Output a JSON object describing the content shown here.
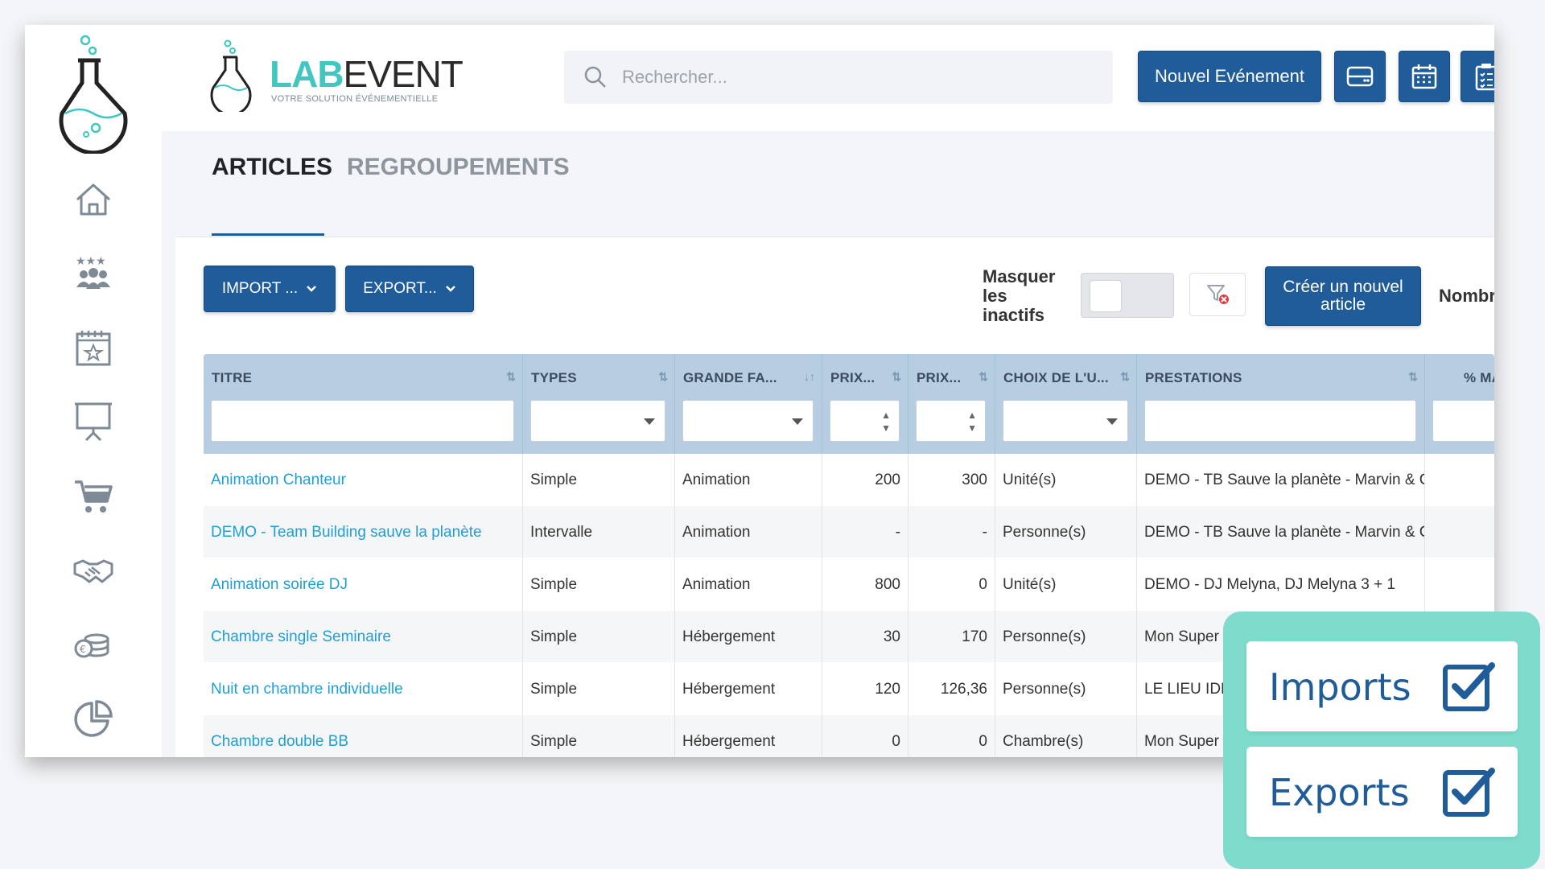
{
  "app": {
    "brand_lab": "LAB",
    "brand_event": "EVENT",
    "brand_tagline": "VOTRE SOLUTION ÉVÉNEMENTIELLE",
    "accent_color": "#3fc7c0",
    "primary_color": "#1f5c99"
  },
  "sidebar": {
    "items": [
      {
        "icon": "home-icon"
      },
      {
        "icon": "team-stars-icon"
      },
      {
        "icon": "event-calendar-icon"
      },
      {
        "icon": "presentation-board-icon"
      },
      {
        "icon": "cart-icon"
      },
      {
        "icon": "handshake-icon"
      },
      {
        "icon": "coins-icon"
      },
      {
        "icon": "pie-chart-icon"
      }
    ]
  },
  "header": {
    "search_placeholder": "Rechercher...",
    "new_event_label": "Nouvel Evénement",
    "icon_buttons": [
      "card-icon",
      "calendar-icon",
      "clipboard-icon"
    ]
  },
  "tabs": [
    {
      "label": "ARTICLES",
      "active": true
    },
    {
      "label": "REGROUPEMENTS",
      "active": false
    }
  ],
  "toolbar": {
    "import_label": "IMPORT ...",
    "export_label": "EXPORT...",
    "mask_inactive_label": "Masquer les inactifs",
    "create_label": "Créer un nouvel article",
    "nomb_label": "Nombr"
  },
  "grid": {
    "columns": [
      {
        "label": "TITRE"
      },
      {
        "label": "TYPES"
      },
      {
        "label": "GRANDE FA..."
      },
      {
        "label": "PRIX..."
      },
      {
        "label": "PRIX..."
      },
      {
        "label": "CHOIX DE L'U..."
      },
      {
        "label": "PRESTATIONS"
      },
      {
        "label": "% MA"
      }
    ],
    "rows": [
      {
        "titre": "Animation Chanteur",
        "type": "Simple",
        "famille": "Animation",
        "prix1": "200",
        "prix2": "300",
        "choix": "Unité(s)",
        "prestations": "DEMO - TB Sauve la planète - Marvin & C"
      },
      {
        "titre": "DEMO - Team Building sauve la planète",
        "type": "Intervalle",
        "famille": "Animation",
        "prix1": "-",
        "prix2": "-",
        "choix": "Personne(s)",
        "prestations": "DEMO - TB Sauve la planète - Marvin & C"
      },
      {
        "titre": "Animation soirée DJ",
        "type": "Simple",
        "famille": "Animation",
        "prix1": "800",
        "prix2": "0",
        "choix": "Unité(s)",
        "prestations": "DEMO - DJ Melyna, DJ Melyna 3 + 1"
      },
      {
        "titre": "Chambre single Seminaire",
        "type": "Simple",
        "famille": "Hébergement",
        "prix1": "30",
        "prix2": "170",
        "choix": "Personne(s)",
        "prestations": "Mon Super Lieu - demo"
      },
      {
        "titre": "Nuit en chambre individuelle",
        "type": "Simple",
        "famille": "Hébergement",
        "prix1": "120",
        "prix2": "126,36",
        "choix": "Personne(s)",
        "prestations": "LE LIEU IDEAL"
      },
      {
        "titre": "Chambre double BB",
        "type": "Simple",
        "famille": "Hébergement",
        "prix1": "0",
        "prix2": "0",
        "choix": "Chambre(s)",
        "prestations": "Mon Super Lieu"
      }
    ]
  },
  "features": [
    {
      "label": "Imports",
      "checked": true
    },
    {
      "label": "Exports",
      "checked": true
    }
  ]
}
